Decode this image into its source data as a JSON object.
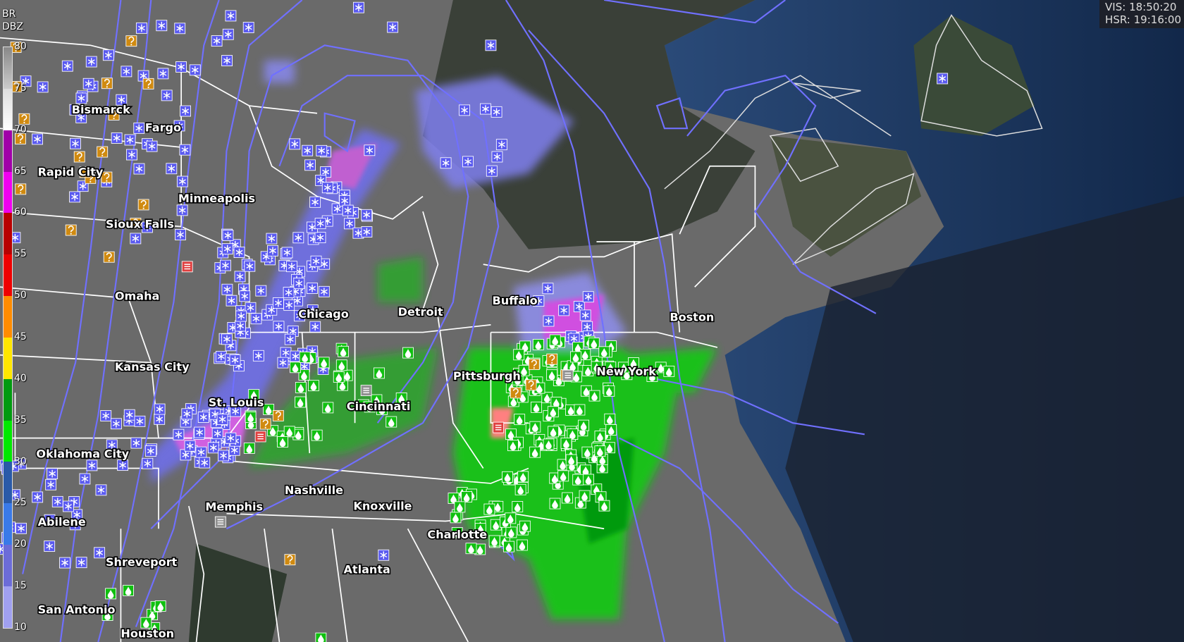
{
  "legend": {
    "product": "BR",
    "unit": "DBZ",
    "ticks": [
      "80",
      "75",
      "70",
      "65",
      "60",
      "55",
      "50",
      "45",
      "40",
      "35",
      "30",
      "25",
      "20",
      "15",
      "10"
    ],
    "colors": [
      "#9a9a9a",
      "#e8e8e8",
      "#a000a8",
      "#f000f0",
      "#b80000",
      "#ee0000",
      "#ff8c00",
      "#ffe600",
      "#009a10",
      "#00e800",
      "#2a5aa8",
      "#3a7ae8",
      "#6c6cd8",
      "#a0a0f0"
    ]
  },
  "readout": {
    "vis": "VIS: 18:50:20",
    "hsr": "HSR: 19:16:00"
  },
  "cities": [
    {
      "name": "Bismarck"
    },
    {
      "name": "Fargo"
    },
    {
      "name": "Rapid City"
    },
    {
      "name": "Minneapolis"
    },
    {
      "name": "Sioux Falls"
    },
    {
      "name": "Omaha"
    },
    {
      "name": "Chicago"
    },
    {
      "name": "Detroit"
    },
    {
      "name": "Buffalo"
    },
    {
      "name": "Boston"
    },
    {
      "name": "Kansas City"
    },
    {
      "name": "St. Louis"
    },
    {
      "name": "Pittsburgh"
    },
    {
      "name": "Cincinnati"
    },
    {
      "name": "Nashville"
    },
    {
      "name": "Knoxville"
    },
    {
      "name": "Memphis"
    },
    {
      "name": "Charlotte"
    },
    {
      "name": "Atlanta"
    },
    {
      "name": "Shreveport"
    },
    {
      "name": "Oklahoma City"
    },
    {
      "name": "Abilene"
    },
    {
      "name": "San Antonio"
    },
    {
      "name": "Houston"
    },
    {
      "name": "New York"
    }
  ],
  "marker_types": {
    "snow": {
      "icon": "snowflake-icon",
      "color": "#5a5af0"
    },
    "rain": {
      "icon": "raindrop-icon",
      "color": "#10c010"
    },
    "unknown": {
      "icon": "question-icon",
      "color": "#d08a10"
    },
    "freezing": {
      "icon": "freezing-rain-icon",
      "color": "#e04040"
    },
    "fog": {
      "icon": "fog-icon",
      "color": "#909090"
    }
  },
  "colors": {
    "isobar": "#7070ff",
    "borders": "#ffffff",
    "ocean": "#1c3c68"
  }
}
